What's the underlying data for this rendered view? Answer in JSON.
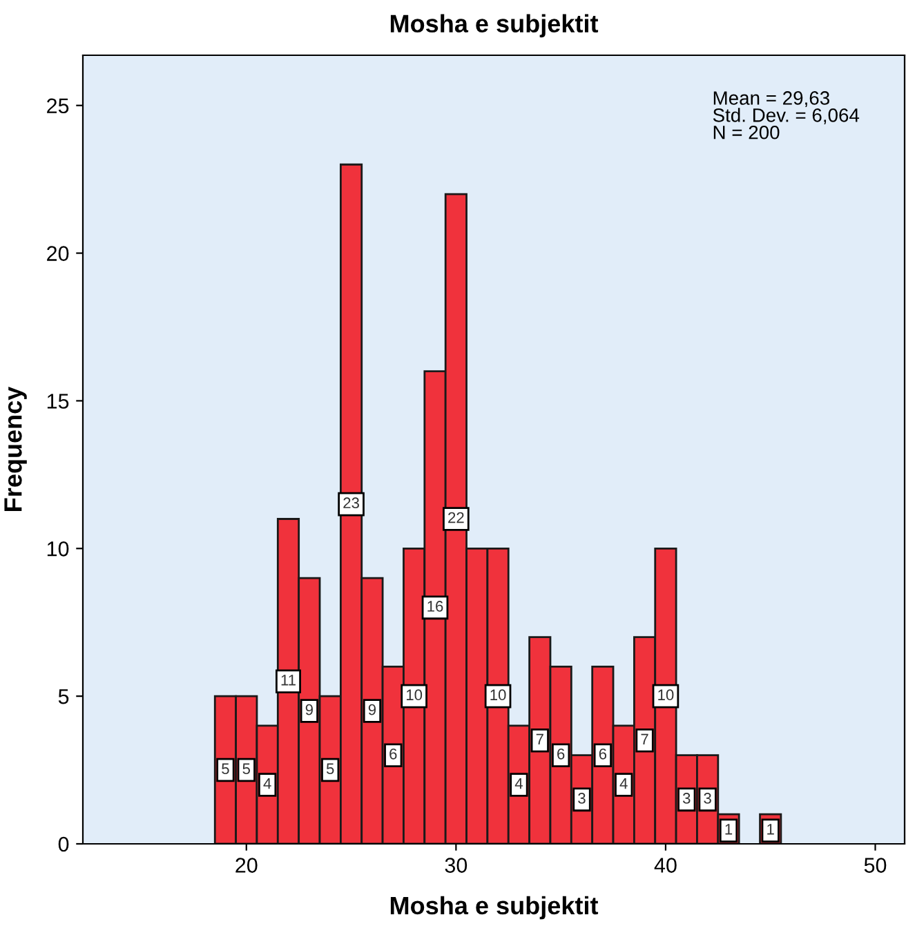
{
  "chart_data": {
    "type": "histogram",
    "title": "Mosha e subjektit",
    "xlabel": "Mosha e subjektit",
    "ylabel": "Frequency",
    "bins": [
      18.5,
      19.5,
      20.5,
      21.5,
      22.5,
      23.5,
      24.5,
      25.5,
      26.5,
      27.5,
      28.5,
      29.5,
      30.5,
      31.5,
      32.5,
      33.5,
      34.5,
      35.5,
      36.5,
      37.5,
      38.5,
      39.5,
      40.5,
      41.5,
      42.5,
      43.5,
      44.5,
      45.5
    ],
    "values": [
      5,
      5,
      4,
      11,
      9,
      5,
      23,
      9,
      6,
      10,
      16,
      22,
      10,
      10,
      4,
      7,
      6,
      3,
      6,
      4,
      7,
      10,
      3,
      3,
      1,
      0,
      1
    ],
    "value_labels": [
      "5",
      "5",
      "4",
      "11",
      "9",
      "5",
      "23",
      "9",
      "6",
      "10",
      "16",
      "22",
      null,
      "10",
      "4",
      "7",
      "6",
      "3",
      "6",
      "4",
      "7",
      "10",
      "3",
      "3",
      "1",
      null,
      "1"
    ],
    "color": "#f0323c",
    "xlim": [
      12.2,
      51.4
    ],
    "xticks": [
      20,
      30,
      40,
      50
    ],
    "ylim": [
      0,
      26.7
    ],
    "yticks": [
      0,
      5,
      10,
      15,
      20,
      25
    ],
    "grid": false,
    "annotations": [
      "Mean = 29,63\nStd. Dev. = 6,064\nN = 200"
    ]
  }
}
